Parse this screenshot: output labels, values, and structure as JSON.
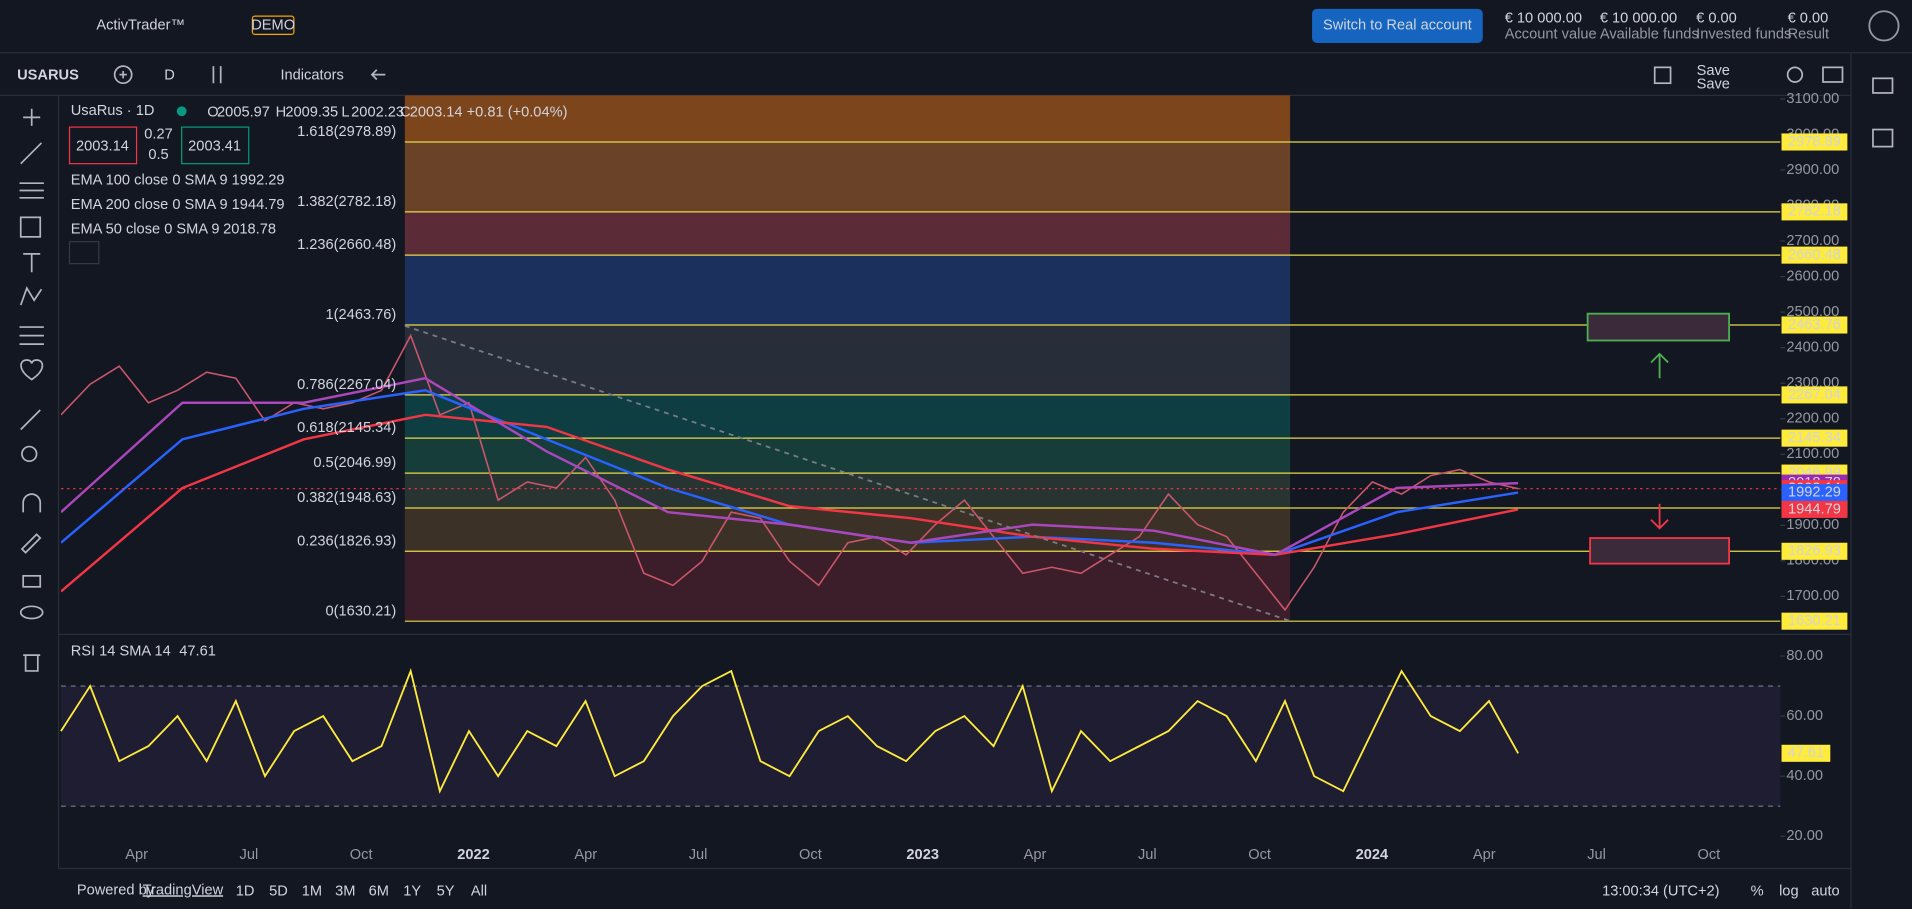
{
  "header": {
    "logo": "ActivTrader™",
    "badge": "DEMO",
    "cta": "Switch to Real account",
    "stats": [
      {
        "value": "€ 10 000.00",
        "label": "Account value"
      },
      {
        "value": "€ 10 000.00",
        "label": "Available funds"
      },
      {
        "value": "€ 0.00",
        "label": "Invested funds"
      },
      {
        "value": "€ 0.00",
        "label": "Result"
      }
    ]
  },
  "toolbar": {
    "symbol": "USARUS",
    "interval": "D",
    "indicators": "Indicators",
    "save": "Save",
    "save_sub": "Save"
  },
  "legend": {
    "title": "UsaRus · 1D",
    "ohlc": [
      {
        "key": "O",
        "value": "2005.97"
      },
      {
        "key": "H",
        "value": "2009.35"
      },
      {
        "key": "L",
        "value": "2002.23"
      },
      {
        "key": "C",
        "value": "2003.14 +0.81 (+0.04%)"
      }
    ],
    "bid": "2003.14",
    "spread": "0.27",
    "lot": "0.5",
    "ask": "2003.41",
    "studies": [
      {
        "label": "EMA 100 close 0 SMA 9",
        "value": "1992.29",
        "color": "#2962ff"
      },
      {
        "label": "EMA 200 close 0 SMA 9",
        "value": "1944.79",
        "color": "#f23645"
      },
      {
        "label": "EMA 50 close 0 SMA 9",
        "value": "2018.78",
        "color": "#9c27b0"
      }
    ]
  },
  "chart_data": {
    "type": "line",
    "ylim": [
      1600,
      3110
    ],
    "yticks": [
      {
        "value": 1700,
        "label": "1700.00"
      },
      {
        "value": 1800,
        "label": "1800.00"
      },
      {
        "value": 1900,
        "label": "1900.00"
      },
      {
        "value": 2000,
        "label": "2000.00"
      },
      {
        "value": 2100,
        "label": "2100.00"
      },
      {
        "value": 2200,
        "label": "2200.00"
      },
      {
        "value": 2300,
        "label": "2300.00"
      },
      {
        "value": 2400,
        "label": "2400.00"
      },
      {
        "value": 2500,
        "label": "2500.00"
      },
      {
        "value": 2600,
        "label": "2600.00"
      },
      {
        "value": 2700,
        "label": "2700.00"
      },
      {
        "value": 2800,
        "label": "2800.00"
      },
      {
        "value": 2900,
        "label": "2900.00"
      },
      {
        "value": 3000,
        "label": "3000.00"
      },
      {
        "value": 3100,
        "label": "3100.00"
      }
    ],
    "fib": [
      {
        "label": "1.618(2978.89)",
        "price": 2978.89,
        "color": "#2962ff",
        "zone": "#7a4a28"
      },
      {
        "label": "1.382(2782.18)",
        "price": 2782.18,
        "color": "#f23645",
        "zone": "#6a2f3c"
      },
      {
        "label": "1.236(2660.48)",
        "price": 2660.48,
        "color": "#ff9800",
        "zone": "#1d3566"
      },
      {
        "label": "1(2463.76)",
        "price": 2463.76,
        "color": "#787b86",
        "zone": "#2c313d"
      },
      {
        "label": "0.786(2267.04)",
        "price": 2267.04,
        "color": "#00bcd4",
        "zone": "#0e4548"
      },
      {
        "label": "0.618(2145.34)",
        "price": 2145.34,
        "color": "#089981",
        "zone": "#17443e"
      },
      {
        "label": "0.5(2046.99)",
        "price": 2046.99,
        "color": "#4caf50",
        "zone": "#2c3a34"
      },
      {
        "label": "0.382(1948.63)",
        "price": 1948.63,
        "color": "#ff9800",
        "zone": "#443628"
      },
      {
        "label": "0.236(1826.93)",
        "price": 1826.93,
        "color": "#f23645",
        "zone": "#441f2b"
      },
      {
        "label": "0(1630.21)",
        "price": 1630.21,
        "color": "#787b86",
        "zone": null
      }
    ],
    "series": [
      {
        "name": "UsaRus",
        "color": "#c9566a",
        "values": [
          2211,
          2297,
          2348,
          2245,
          2280,
          2331,
          2314,
          2194,
          2245,
          2228,
          2245,
          2280,
          2434,
          2211,
          2245,
          1971,
          2022,
          2005,
          2091,
          1971,
          1765,
          1731,
          1799,
          1937,
          1920,
          1799,
          1731,
          1851,
          1868,
          1817,
          1902,
          1971,
          1868,
          1765,
          1782,
          1765,
          1817,
          1868,
          1988,
          1902,
          1868,
          1765,
          1662,
          1782,
          1937,
          2022,
          1988,
          2040,
          2057,
          2022,
          2003.14
        ]
      },
      {
        "name": "EMA 100",
        "color": "#2962ff",
        "values": [
          1851,
          2142,
          2228,
          2280,
          2142,
          2005,
          1902,
          1851,
          1868,
          1851,
          1817,
          1937,
          1992.29
        ]
      },
      {
        "name": "EMA 200",
        "color": "#f23645",
        "values": [
          1714,
          2005,
          2142,
          2211,
          2177,
          2057,
          1954,
          1920,
          1868,
          1834,
          1817,
          1875,
          1944.79
        ]
      },
      {
        "name": "EMA 50",
        "color": "#ab47bc",
        "values": [
          1937,
          2245,
          2245,
          2314,
          2108,
          1937,
          1902,
          1851,
          1902,
          1885,
          1817,
          2005,
          2018.78
        ]
      }
    ],
    "xlabels": [
      "Apr",
      "Jul",
      "Oct",
      "2022",
      "Apr",
      "Jul",
      "Oct",
      "2023",
      "Apr",
      "Jul",
      "Oct",
      "2024",
      "Apr",
      "Jul",
      "Oct"
    ]
  },
  "rsi": {
    "label": "RSI 14 SMA 14",
    "value": "47.61",
    "color": "#ffeb3b",
    "ylim": [
      19,
      86
    ],
    "yticks": [
      {
        "value": 20,
        "label": "20.00"
      },
      {
        "value": 40,
        "label": "40.00"
      },
      {
        "value": 60,
        "label": "60.00"
      },
      {
        "value": 80,
        "label": "80.00"
      }
    ],
    "bands": [
      30,
      70
    ],
    "values": [
      55,
      70,
      45,
      50,
      60,
      45,
      65,
      40,
      55,
      60,
      45,
      50,
      75,
      35,
      55,
      40,
      55,
      50,
      65,
      40,
      45,
      60,
      70,
      75,
      45,
      40,
      55,
      60,
      50,
      45,
      55,
      60,
      50,
      70,
      35,
      55,
      45,
      50,
      55,
      65,
      60,
      45,
      65,
      40,
      35,
      55,
      75,
      60,
      55,
      65,
      47.61
    ]
  },
  "footer": {
    "powered": "Powered by",
    "link": "TradingView",
    "ranges": [
      "1D",
      "5D",
      "1M",
      "3M",
      "6M",
      "1Y",
      "5Y",
      "All"
    ],
    "clock": "13:00:34 (UTC+2)",
    "pct": "%",
    "log": "log",
    "auto": "auto"
  }
}
